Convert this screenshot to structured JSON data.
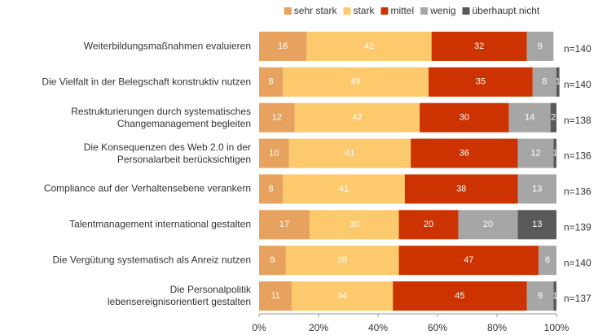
{
  "chart_data": {
    "type": "stacked-bar-horizontal",
    "categories": [
      "Weiterbildungsmaßnahmen evaluieren",
      "Die Vielfalt in der Belegschaft konstruktiv nutzen",
      "Restrukturierungen durch systematisches\nChangemanagement begleiten",
      "Die Konsequenzen des Web 2.0 in der\nPersonalarbeit berücksichtigen",
      "Compliance auf der Verhaltensebene verankern",
      "Talentmanagement international gestalten",
      "Die Vergütung systematisch als Anreiz nutzen",
      "Die Personalpolitik\nlebensereignisorientiert gestalten"
    ],
    "series": [
      {
        "name": "sehr stark",
        "color": "#e6a25e",
        "values": [
          16,
          8,
          12,
          10,
          8,
          17,
          9,
          11
        ]
      },
      {
        "name": "stark",
        "color": "#fcca6c",
        "values": [
          42,
          49,
          42,
          41,
          41,
          30,
          38,
          34
        ]
      },
      {
        "name": "mittel",
        "color": "#cc3300",
        "values": [
          32,
          35,
          30,
          36,
          38,
          20,
          47,
          45
        ]
      },
      {
        "name": "wenig",
        "color": "#a6a6a6",
        "values": [
          9,
          8,
          14,
          12,
          13,
          20,
          6,
          9
        ]
      },
      {
        "name": "überhaupt nicht",
        "color": "#595959",
        "values": [
          null,
          1,
          2,
          1,
          null,
          13,
          null,
          1
        ]
      }
    ],
    "n_labels": [
      "n=140",
      "n=140",
      "n=138",
      "n=136",
      "n=136",
      "n=139",
      "n=140",
      "n=137"
    ],
    "xlim": [
      0,
      100
    ],
    "xticks": [
      {
        "value": 0,
        "label": "0%"
      },
      {
        "value": 20,
        "label": "20%"
      },
      {
        "value": 40,
        "label": "40%"
      },
      {
        "value": 60,
        "label": "60%"
      },
      {
        "value": 80,
        "label": "80%"
      },
      {
        "value": 100,
        "label": "100%"
      }
    ],
    "legend": "top"
  }
}
